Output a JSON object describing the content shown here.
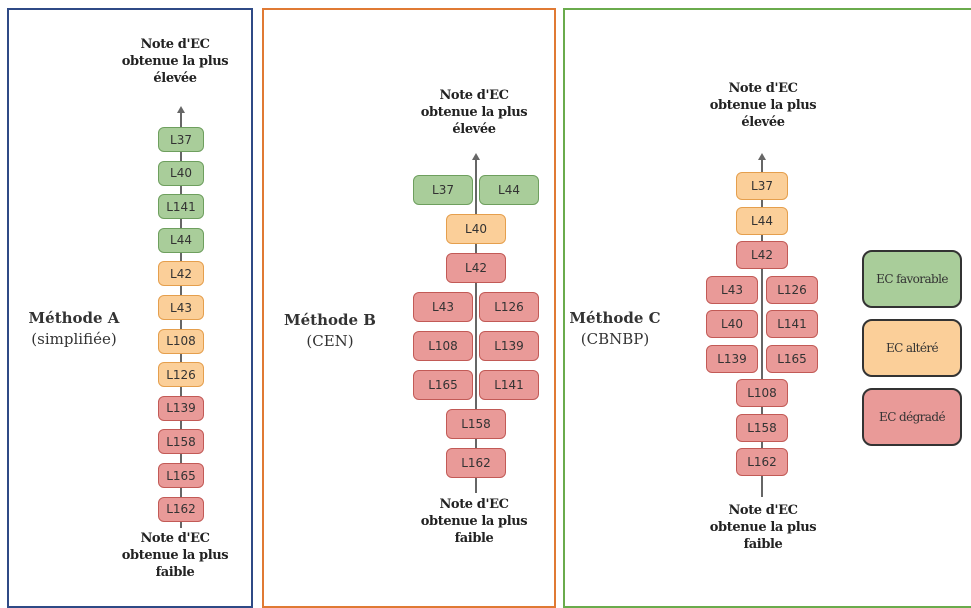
{
  "panels": [
    {
      "method_name": "Méthode A",
      "method_sub": "(simplifiée)",
      "top_label": "Note d'EC obtenue la plus élevée",
      "bottom_label": "Note d'EC obtenue la plus faible",
      "rows": [
        [
          {
            "label": "L37",
            "status": "favorable"
          }
        ],
        [
          {
            "label": "L40",
            "status": "favorable"
          }
        ],
        [
          {
            "label": "L141",
            "status": "favorable"
          }
        ],
        [
          {
            "label": "L44",
            "status": "favorable"
          }
        ],
        [
          {
            "label": "L42",
            "status": "altere"
          }
        ],
        [
          {
            "label": "L43",
            "status": "altere"
          }
        ],
        [
          {
            "label": "L108",
            "status": "altere"
          }
        ],
        [
          {
            "label": "L126",
            "status": "altere"
          }
        ],
        [
          {
            "label": "L139",
            "status": "degrade"
          }
        ],
        [
          {
            "label": "L158",
            "status": "degrade"
          }
        ],
        [
          {
            "label": "L165",
            "status": "degrade"
          }
        ],
        [
          {
            "label": "L162",
            "status": "degrade"
          }
        ]
      ]
    },
    {
      "method_name": "Méthode B",
      "method_sub": "(CEN)",
      "top_label": "Note d'EC obtenue la plus élevée",
      "bottom_label": "Note d'EC obtenue la plus faible",
      "rows": [
        [
          {
            "label": "L37",
            "status": "favorable"
          },
          {
            "label": "L44",
            "status": "favorable"
          }
        ],
        [
          {
            "label": "L40",
            "status": "altere"
          }
        ],
        [
          {
            "label": "L42",
            "status": "degrade"
          }
        ],
        [
          {
            "label": "L43",
            "status": "degrade"
          },
          {
            "label": "L126",
            "status": "degrade"
          }
        ],
        [
          {
            "label": "L108",
            "status": "degrade"
          },
          {
            "label": "L139",
            "status": "degrade"
          }
        ],
        [
          {
            "label": "L165",
            "status": "degrade"
          },
          {
            "label": "L141",
            "status": "degrade"
          }
        ],
        [
          {
            "label": "L158",
            "status": "degrade"
          }
        ],
        [
          {
            "label": "L162",
            "status": "degrade"
          }
        ]
      ]
    },
    {
      "method_name": "Méthode C",
      "method_sub": "(CBNBP)",
      "top_label": "Note d'EC obtenue la plus élevée",
      "bottom_label": "Note d'EC obtenue la plus faible",
      "rows": [
        [
          {
            "label": "L37",
            "status": "altere"
          }
        ],
        [
          {
            "label": "L44",
            "status": "altere"
          }
        ],
        [
          {
            "label": "L42",
            "status": "degrade"
          }
        ],
        [
          {
            "label": "L43",
            "status": "degrade"
          },
          {
            "label": "L126",
            "status": "degrade"
          }
        ],
        [
          {
            "label": "L40",
            "status": "degrade"
          },
          {
            "label": "L141",
            "status": "degrade"
          }
        ],
        [
          {
            "label": "L139",
            "status": "degrade"
          },
          {
            "label": "L165",
            "status": "degrade"
          }
        ],
        [
          {
            "label": "L108",
            "status": "degrade"
          }
        ],
        [
          {
            "label": "L158",
            "status": "degrade"
          }
        ],
        [
          {
            "label": "L162",
            "status": "degrade"
          }
        ]
      ]
    }
  ],
  "legend": [
    {
      "label": "EC favorable",
      "status": "favorable"
    },
    {
      "label": "EC altéré",
      "status": "altere"
    },
    {
      "label": "EC dégradé",
      "status": "degrade"
    }
  ],
  "colors": {
    "panel_a_border": "#2f4a86",
    "panel_b_border": "#e07a34",
    "panel_c_border": "#6aab4c",
    "favorable": "#a9cd9a",
    "altere": "#fbcf99",
    "degrade": "#e99a98"
  }
}
